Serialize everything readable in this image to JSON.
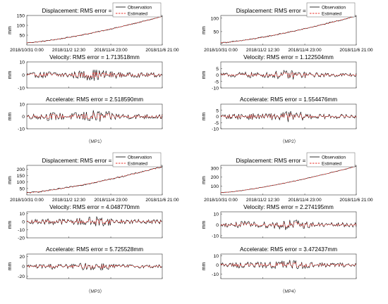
{
  "chart_data": [
    {
      "panel": "MP1",
      "caption": "（MP1）",
      "legend": {
        "entries": [
          "Observation",
          "Estimated"
        ],
        "placement": "top-right"
      },
      "x_ticks": [
        "2018/10/31 0:00",
        "2018/11/2  12:30",
        "2018/11/4  23:00",
        "2018/11/6  21:00"
      ],
      "subplots": [
        {
          "type": "line",
          "title": "Displacement: RMS error = 1.445575mm",
          "ylabel": "mm",
          "ylim": [
            0,
            150
          ],
          "yticks": [
            "50",
            "100",
            "150"
          ],
          "kind": "trend",
          "end": 145,
          "noise": 2.5
        },
        {
          "type": "line",
          "title": "Velocity: RMS error = 1.713518mm",
          "ylabel": "mm",
          "ylim": [
            -10,
            10
          ],
          "yticks": [
            "-10",
            "0",
            "10"
          ],
          "kind": "osc",
          "amp": 3,
          "noise": 0
        },
        {
          "type": "line",
          "title": "Accelerate: RMS error = 2.518590mm",
          "ylabel": "mm",
          "ylim": [
            -10,
            10
          ],
          "yticks": [
            "-10",
            "0",
            "10"
          ],
          "kind": "osc",
          "amp": 3.5,
          "noise": 0
        }
      ]
    },
    {
      "panel": "MP2",
      "caption": "（MP2）",
      "legend": {
        "entries": [
          "Observation",
          "Estimated"
        ],
        "placement": "top-right"
      },
      "x_ticks": [
        "2018/10/31 0:00",
        "2018/11/2  12:30",
        "2018/11/4  23:00",
        "2018/11/6  21:00"
      ],
      "subplots": [
        {
          "type": "line",
          "title": "Displacement: RMS error = 1.011413mm",
          "ylabel": "mm",
          "ylim": [
            0,
            110
          ],
          "yticks": [
            "50",
            "100"
          ],
          "kind": "trend",
          "end": 108,
          "noise": 2
        },
        {
          "type": "line",
          "title": "Velocity: RMS error = 1.122504mm",
          "ylabel": "mm",
          "ylim": [
            -10,
            10
          ],
          "yticks": [
            "-10",
            "-5",
            "0",
            "5"
          ],
          "kind": "osc",
          "amp": 2.5,
          "noise": 0
        },
        {
          "type": "line",
          "title": "Accelerate: RMS error = 1.554476mm",
          "ylabel": "mm",
          "ylim": [
            -10,
            10
          ],
          "yticks": [
            "-10",
            "-5",
            "0",
            "5"
          ],
          "kind": "osc",
          "amp": 3,
          "noise": 0
        }
      ]
    },
    {
      "panel": "MP3",
      "caption": "（MP3）",
      "legend": {
        "entries": [
          "Observation",
          "Estimated"
        ],
        "placement": "top-right"
      },
      "x_ticks": [
        "2018/10/31 0:00",
        "2018/11/2  12:30",
        "2018/11/4  23:00",
        "2018/11/6  21:00"
      ],
      "subplots": [
        {
          "type": "line",
          "title": "Displacement: RMS error = 3.406693mm",
          "ylabel": "mm",
          "ylim": [
            0,
            230
          ],
          "yticks": [
            "50",
            "100",
            "150",
            "200"
          ],
          "kind": "trend",
          "end": 220,
          "noise": 5
        },
        {
          "type": "line",
          "title": "Velocity: RMS error = 4.048770mm",
          "ylabel": "mm",
          "ylim": [
            -20,
            12
          ],
          "yticks": [
            "-20",
            "-10",
            "0",
            "10"
          ],
          "kind": "osc",
          "amp": 4.5,
          "noise": 0
        },
        {
          "type": "line",
          "title": "Accelerate: RMS error = 5.725528mm",
          "ylabel": "mm",
          "ylim": [
            -25,
            25
          ],
          "yticks": [
            "-20",
            "0",
            "20"
          ],
          "kind": "osc",
          "amp": 6,
          "noise": 0
        }
      ]
    },
    {
      "panel": "MP4",
      "caption": "（MP4）",
      "legend": {
        "entries": [
          "Observation",
          "Estimated"
        ],
        "placement": "top-right"
      },
      "x_ticks": [
        "2018/10/31 0:00",
        "2018/11/2  12:30",
        "2018/11/4  23:00",
        "2018/11/6  21:00"
      ],
      "subplots": [
        {
          "type": "line",
          "title": "Displacement: RMS error = 1.839475mm",
          "ylabel": "mm",
          "ylim": [
            0,
            330
          ],
          "yticks": [
            "100",
            "200",
            "300"
          ],
          "kind": "trend",
          "end": 320,
          "noise": 3
        },
        {
          "type": "line",
          "title": "Velocity: RMS error = 2.274195mm",
          "ylabel": "mm",
          "ylim": [
            -12,
            12
          ],
          "yticks": [
            "-10",
            "0",
            "10"
          ],
          "kind": "osc",
          "amp": 3.5,
          "noise": 0
        },
        {
          "type": "line",
          "title": "Accelerate: RMS error = 3.472437mm",
          "ylabel": "mm",
          "ylim": [
            -15,
            12
          ],
          "yticks": [
            "-10",
            "0",
            "10"
          ],
          "kind": "osc",
          "amp": 4,
          "noise": 0
        }
      ]
    }
  ],
  "colors": {
    "observation": "#000000",
    "estimated": "#e8312b",
    "axes": "#333333"
  }
}
